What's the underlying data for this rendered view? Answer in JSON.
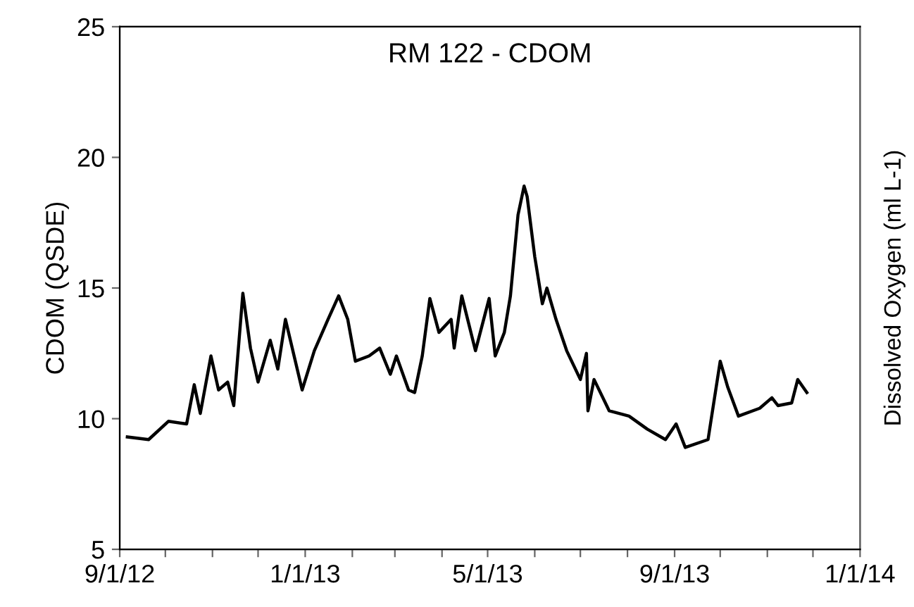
{
  "chart_data": {
    "type": "line",
    "title": "RM 122 - CDOM",
    "ylabel": "CDOM (QSDE)",
    "y2label": "Dissolved Oxygen (ml L-1)",
    "series": [
      {
        "color": "#000000",
        "x": [
          "2012-09-06",
          "2012-09-20",
          "2012-10-03",
          "2012-10-15",
          "2012-10-20",
          "2012-10-24",
          "2012-10-31",
          "2012-11-05",
          "2012-11-11",
          "2012-11-15",
          "2012-11-21",
          "2012-11-26",
          "2012-12-01",
          "2012-12-09",
          "2012-12-14",
          "2012-12-19",
          "2012-12-30",
          "2013-01-07",
          "2013-01-16",
          "2013-01-23",
          "2013-01-29",
          "2013-02-03",
          "2013-02-12",
          "2013-02-19",
          "2013-02-26",
          "2013-03-02",
          "2013-03-10",
          "2013-03-14",
          "2013-03-19",
          "2013-03-24",
          "2013-03-30",
          "2013-04-07",
          "2013-04-09",
          "2013-04-14",
          "2013-04-23",
          "2013-05-02",
          "2013-05-06",
          "2013-05-12",
          "2013-05-16",
          "2013-05-21",
          "2013-05-25",
          "2013-05-27",
          "2013-06-01",
          "2013-06-06",
          "2013-06-09",
          "2013-06-15",
          "2013-06-22",
          "2013-07-01",
          "2013-07-05",
          "2013-07-06",
          "2013-07-10",
          "2013-07-20",
          "2013-08-02",
          "2013-08-14",
          "2013-08-26",
          "2013-09-02",
          "2013-09-08",
          "2013-09-23",
          "2013-10-01",
          "2013-10-06",
          "2013-10-13",
          "2013-10-27",
          "2013-11-04",
          "2013-11-08",
          "2013-11-17",
          "2013-11-21",
          "2013-11-27"
        ],
        "values": [
          9.3,
          9.2,
          9.9,
          9.8,
          11.3,
          10.2,
          12.4,
          11.1,
          11.4,
          10.5,
          14.8,
          12.7,
          11.4,
          13.0,
          11.9,
          13.8,
          11.1,
          12.6,
          13.8,
          14.7,
          13.8,
          12.2,
          12.4,
          12.7,
          11.7,
          12.4,
          11.1,
          11.0,
          12.4,
          14.6,
          13.3,
          13.8,
          12.7,
          14.7,
          12.6,
          14.6,
          12.4,
          13.3,
          14.7,
          17.8,
          18.9,
          18.5,
          16.2,
          14.4,
          15.0,
          13.8,
          12.6,
          11.5,
          12.5,
          10.3,
          11.5,
          10.3,
          10.1,
          9.6,
          9.2,
          9.8,
          8.9,
          9.2,
          12.2,
          11.2,
          10.1,
          10.4,
          10.8,
          10.5,
          10.6,
          11.5,
          11.0
        ]
      }
    ],
    "xlim": [
      "2012-09-01",
      "2014-01-01"
    ],
    "xticks": [
      {
        "value": "2012-09-01",
        "label": "9/1/12"
      },
      {
        "value": "2012-10-01",
        "label": null
      },
      {
        "value": "2012-11-01",
        "label": null
      },
      {
        "value": "2012-12-01",
        "label": null
      },
      {
        "value": "2013-01-01",
        "label": "1/1/13"
      },
      {
        "value": "2013-02-01",
        "label": null
      },
      {
        "value": "2013-03-01",
        "label": null
      },
      {
        "value": "2013-04-01",
        "label": null
      },
      {
        "value": "2013-05-01",
        "label": "5/1/13"
      },
      {
        "value": "2013-06-01",
        "label": null
      },
      {
        "value": "2013-07-01",
        "label": null
      },
      {
        "value": "2013-08-01",
        "label": null
      },
      {
        "value": "2013-09-01",
        "label": "9/1/13"
      },
      {
        "value": "2013-10-01",
        "label": null
      },
      {
        "value": "2013-11-01",
        "label": null
      },
      {
        "value": "2013-12-01",
        "label": null
      },
      {
        "value": "2014-01-01",
        "label": "1/1/14"
      }
    ],
    "ylim": [
      5,
      25
    ],
    "yticks": [
      5,
      10,
      15,
      20,
      25
    ],
    "grid": false,
    "legend": false,
    "marker": "none",
    "line_style": "solid"
  }
}
